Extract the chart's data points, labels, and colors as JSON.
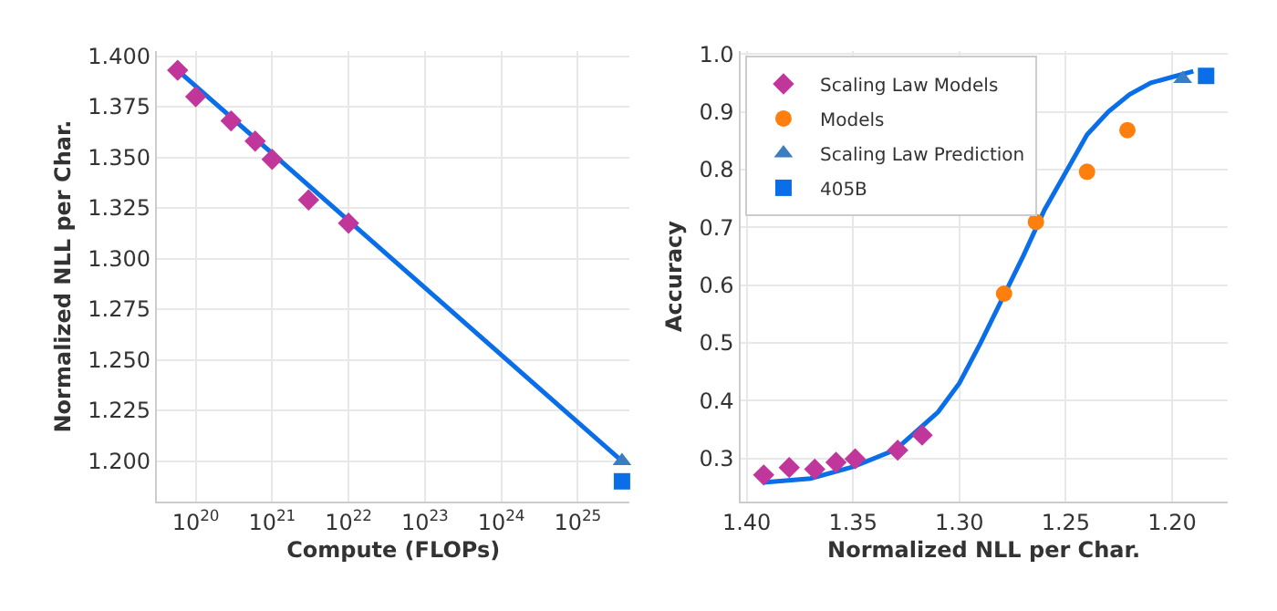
{
  "chart_data": [
    {
      "type": "scatter",
      "xlabel": "Compute (FLOPs)",
      "ylabel": "Normalized NLL per Char.",
      "log": "x",
      "grid": true,
      "legend": false,
      "xlim": [
        3.1e+19,
        4.8e+25
      ],
      "ylim": [
        1.18,
        1.4025
      ],
      "xticks": [
        {
          "value": 1e+20,
          "label": "10$^{20}$"
        },
        {
          "value": 1e+21,
          "label": "10$^{21}$"
        },
        {
          "value": 1e+22,
          "label": "10$^{22}$"
        },
        {
          "value": 1e+23,
          "label": "10$^{23}$"
        },
        {
          "value": 1e+24,
          "label": "10$^{24}$"
        },
        {
          "value": 1e+25,
          "label": "10$^{25}$"
        }
      ],
      "yticks": [
        {
          "value": 1.2,
          "label": "1.200"
        },
        {
          "value": 1.225,
          "label": "1.225"
        },
        {
          "value": 1.25,
          "label": "1.250"
        },
        {
          "value": 1.275,
          "label": "1.275"
        },
        {
          "value": 1.3,
          "label": "1.300"
        },
        {
          "value": 1.325,
          "label": "1.325"
        },
        {
          "value": 1.35,
          "label": "1.350"
        },
        {
          "value": 1.375,
          "label": "1.375"
        },
        {
          "value": 1.4,
          "label": "1.400"
        }
      ],
      "series": [
        {
          "type": "line",
          "color": "#0a6ee8",
          "marker": "none",
          "x": [
            5.8e+19,
            3.8e+25
          ],
          "values": [
            1.393,
            1.2
          ]
        },
        {
          "color": "#c0369a",
          "marker": "diamond",
          "x": [
            5.8e+19,
            1e+20,
            2.9e+20,
            6e+20,
            1e+21,
            3e+21,
            1e+22
          ],
          "values": [
            1.393,
            1.38,
            1.368,
            1.358,
            1.349,
            1.329,
            1.3175
          ]
        },
        {
          "color": "#3a7dc0",
          "marker": "triangle",
          "x": [
            3.8e+25
          ],
          "values": [
            1.2
          ]
        },
        {
          "color": "#0a6ee8",
          "marker": "square",
          "x": [
            3.8e+25
          ],
          "values": [
            1.19
          ]
        }
      ]
    },
    {
      "type": "scatter",
      "xlabel": "Normalized NLL per Char.",
      "ylabel": "Accuracy",
      "grid": true,
      "legend": "top left",
      "xlim": [
        1.403,
        1.174
      ],
      "ylim": [
        0.225,
        1.005
      ],
      "xticks": [
        {
          "value": 1.4,
          "label": "1.40"
        },
        {
          "value": 1.35,
          "label": "1.35"
        },
        {
          "value": 1.3,
          "label": "1.30"
        },
        {
          "value": 1.25,
          "label": "1.25"
        },
        {
          "value": 1.2,
          "label": "1.20"
        }
      ],
      "yticks": [
        0.3,
        0.4,
        0.5,
        0.6,
        0.7,
        0.8,
        0.9,
        {
          "value": 1.0,
          "label": "1.0"
        }
      ],
      "series": [
        {
          "type": "line",
          "color": "#0a6ee8",
          "marker": "none",
          "x": [
            1.392,
            1.37,
            1.35,
            1.33,
            1.31,
            1.3,
            1.29,
            1.28,
            1.27,
            1.26,
            1.25,
            1.24,
            1.23,
            1.22,
            1.21,
            1.2,
            1.19
          ],
          "values": [
            0.258,
            0.265,
            0.285,
            0.315,
            0.38,
            0.43,
            0.5,
            0.575,
            0.65,
            0.73,
            0.795,
            0.86,
            0.9,
            0.93,
            0.95,
            0.96,
            0.97
          ]
        },
        {
          "name": "Scaling Law Models",
          "color": "#c0369a",
          "marker": "diamond",
          "x": [
            1.392,
            1.38,
            1.368,
            1.358,
            1.349,
            1.329,
            1.3175
          ],
          "values": [
            0.271,
            0.284,
            0.281,
            0.293,
            0.299,
            0.314,
            0.34
          ]
        },
        {
          "name": "Models",
          "color": "#ff7f0e",
          "marker": "circle",
          "x": [
            1.279,
            1.264,
            1.24,
            1.221
          ],
          "values": [
            0.585,
            0.709,
            0.796,
            0.868
          ]
        },
        {
          "name": "Scaling Law Prediction",
          "color": "#3a7dc0",
          "marker": "triangle",
          "x": [
            1.195
          ],
          "values": [
            0.957
          ]
        },
        {
          "name": "405B",
          "color": "#0a6ee8",
          "marker": "square",
          "x": [
            1.184
          ],
          "values": [
            0.962
          ]
        }
      ]
    }
  ]
}
